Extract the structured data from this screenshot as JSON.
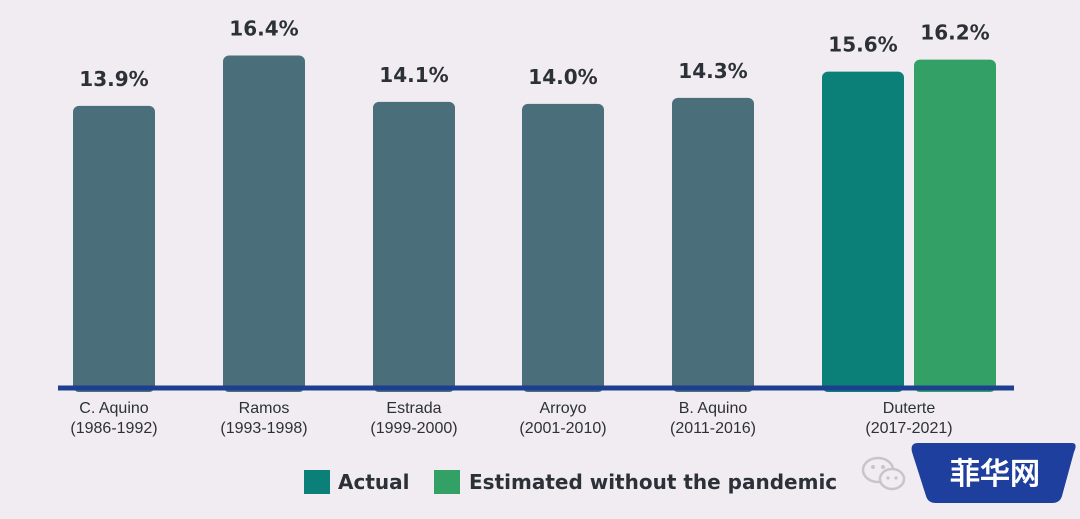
{
  "chart_data": {
    "type": "bar",
    "categories": [
      [
        "C. Aquino",
        "(1986-1992)"
      ],
      [
        "Ramos",
        "(1993-1998)"
      ],
      [
        "Estrada",
        "(1999-2000)"
      ],
      [
        "Arroyo",
        "(2001-2010)"
      ],
      [
        "B. Aquino",
        "(2011-2016)"
      ],
      [
        "Duterte",
        "(2017-2021)"
      ]
    ],
    "bars": [
      {
        "category_index": 0,
        "series": "default",
        "value": 13.9,
        "label": "13.9%"
      },
      {
        "category_index": 1,
        "series": "default",
        "value": 16.4,
        "label": "16.4%"
      },
      {
        "category_index": 2,
        "series": "default",
        "value": 14.1,
        "label": "14.1%"
      },
      {
        "category_index": 3,
        "series": "default",
        "value": 14.0,
        "label": "14.0%"
      },
      {
        "category_index": 4,
        "series": "default",
        "value": 14.3,
        "label": "14.3%"
      },
      {
        "category_index": 5,
        "series": "actual",
        "value": 15.6,
        "label": "15.6%"
      },
      {
        "category_index": 5,
        "series": "estimated",
        "value": 16.2,
        "label": "16.2%"
      }
    ],
    "series": [
      {
        "key": "default",
        "color": "#4a6e7a"
      },
      {
        "key": "actual",
        "name": "Actual",
        "color": "#0b8078"
      },
      {
        "key": "estimated",
        "name": "Estimated without the pandemic",
        "color": "#33a165"
      }
    ],
    "axis_color": "#1d3f8f",
    "legend_placement": "bottom-center",
    "grid": false
  },
  "watermark": {
    "text": "菲华网",
    "badge_color": "#1f3f9f"
  }
}
